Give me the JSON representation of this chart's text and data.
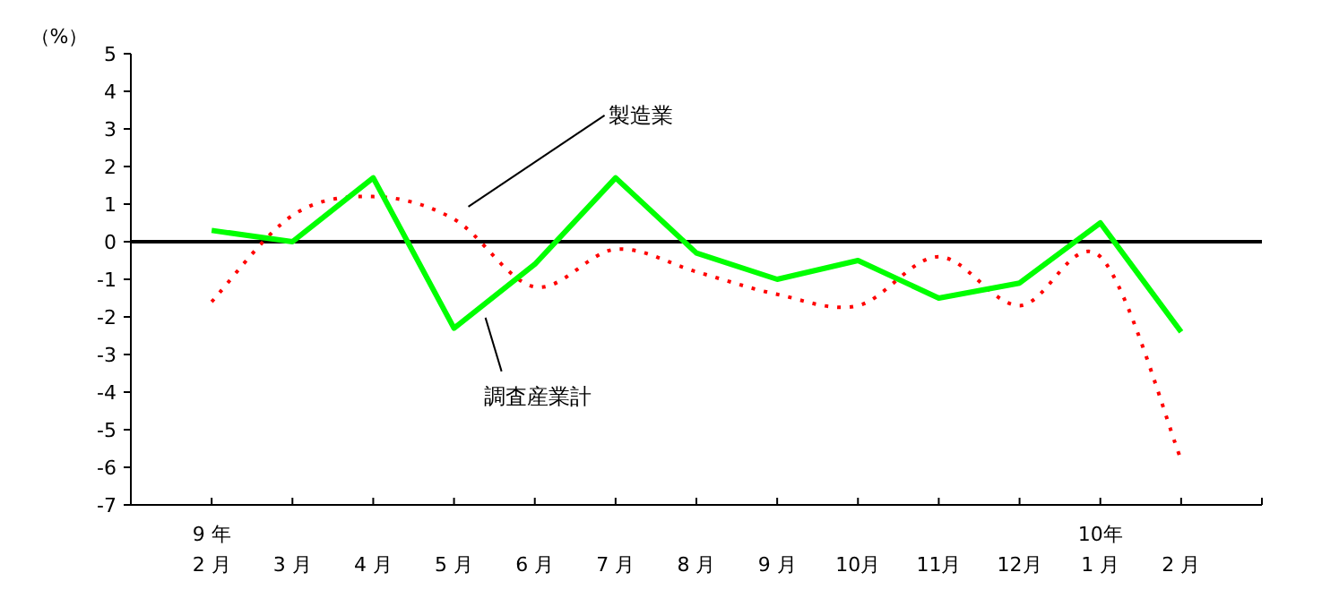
{
  "chart_data": {
    "type": "line",
    "ylabel": "（%）",
    "categories": [
      "9 年\n2 月",
      "3 月",
      "4 月",
      "5 月",
      "6 月",
      "7 月",
      "8 月",
      "9 月",
      "10月",
      "11月",
      "12月",
      "10年\n1 月",
      "2 月"
    ],
    "series": [
      {
        "name": "製造業",
        "color": "#ff0000",
        "line_style": "dotted",
        "values": [
          -1.6,
          0.7,
          1.2,
          0.6,
          -1.2,
          -0.2,
          -0.8,
          -1.4,
          -1.7,
          -0.4,
          -1.7,
          -0.4,
          -5.8
        ]
      },
      {
        "name": "調査産業計",
        "color": "#00ff00",
        "line_style": "solid",
        "values": [
          0.3,
          0.0,
          1.7,
          -2.3,
          -0.6,
          1.7,
          -0.3,
          -1.0,
          -0.5,
          -1.5,
          -1.1,
          0.5,
          -2.4
        ]
      }
    ],
    "ylim": [
      -7,
      5
    ],
    "yticks": [
      -7,
      -6,
      -5,
      -4,
      -3,
      -2,
      -1,
      0,
      1,
      2,
      3,
      4,
      5
    ],
    "ref_lines": [
      {
        "axis": "y",
        "value": 0,
        "color": "#000000"
      }
    ],
    "legend": false,
    "grid": false,
    "marker": "none"
  }
}
